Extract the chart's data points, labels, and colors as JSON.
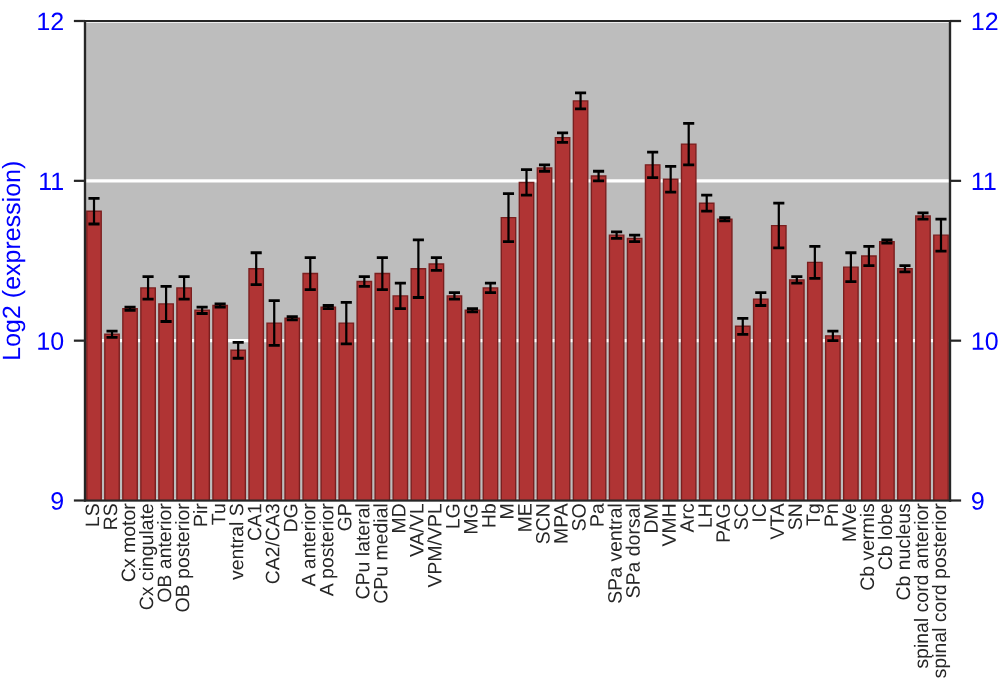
{
  "chart_data": {
    "type": "bar",
    "ylabel": "Log2 (expression)",
    "categories": [
      "LS",
      "RS",
      "Cx motor",
      "Cx cingulate",
      "OB anterior",
      "OB posterior",
      "Pir",
      "Tu",
      "ventral S",
      "CA1",
      "CA2/CA3",
      "DG",
      "A anterior",
      "A posterior",
      "GP",
      "CPu lateral",
      "CPu medial",
      "MD",
      "VA/VL",
      "VPM/VPL",
      "LG",
      "MG",
      "Hb",
      "M",
      "ME",
      "SCN",
      "MPA",
      "SO",
      "Pa",
      "SPa ventral",
      "SPa dorsal",
      "DM",
      "VMH",
      "Arc",
      "LH",
      "PAG",
      "SC",
      "IC",
      "VTA",
      "SN",
      "Tg",
      "Pn",
      "MVe",
      "Cb vermis",
      "Cb lobe",
      "Cb nucleus",
      "spinal cord anterior",
      "spinal cord posterior"
    ],
    "values": [
      10.81,
      10.04,
      10.2,
      10.33,
      10.23,
      10.33,
      10.19,
      10.22,
      9.94,
      10.45,
      10.11,
      10.14,
      10.42,
      10.21,
      10.11,
      10.37,
      10.42,
      10.28,
      10.45,
      10.48,
      10.28,
      10.19,
      10.33,
      10.77,
      10.99,
      11.08,
      11.27,
      11.5,
      11.03,
      10.66,
      10.64,
      11.1,
      11.01,
      11.23,
      10.86,
      10.76,
      10.09,
      10.26,
      10.72,
      10.38,
      10.49,
      10.03,
      10.46,
      10.53,
      10.62,
      10.45,
      10.78,
      10.66
    ],
    "errors": [
      0.08,
      0.02,
      0.01,
      0.07,
      0.11,
      0.07,
      0.02,
      0.01,
      0.05,
      0.1,
      0.14,
      0.01,
      0.1,
      0.01,
      0.13,
      0.03,
      0.1,
      0.08,
      0.18,
      0.04,
      0.02,
      0.01,
      0.03,
      0.15,
      0.08,
      0.02,
      0.03,
      0.05,
      0.03,
      0.02,
      0.02,
      0.08,
      0.08,
      0.13,
      0.05,
      0.01,
      0.05,
      0.04,
      0.14,
      0.02,
      0.1,
      0.03,
      0.09,
      0.06,
      0.01,
      0.02,
      0.02,
      0.1
    ],
    "color": "#b03434",
    "ylim": [
      9,
      12
    ],
    "yticks": [
      9,
      10,
      11,
      12
    ],
    "y2lim": [
      9,
      12
    ],
    "y2ticks": [
      9,
      10,
      11,
      12
    ],
    "grid": "y"
  }
}
